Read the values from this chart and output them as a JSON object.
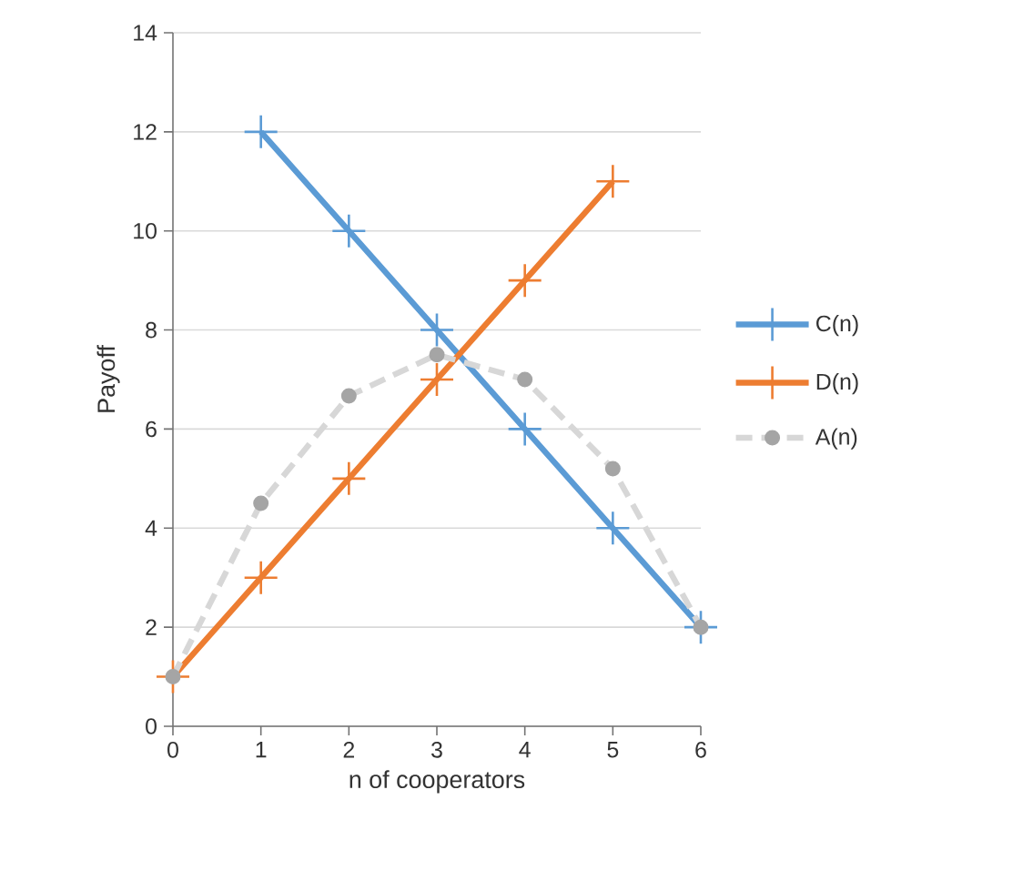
{
  "chart_data": {
    "type": "line",
    "xlabel": "n of cooperators",
    "ylabel": "Payoff",
    "categories": [
      "0",
      "1",
      "2",
      "3",
      "4",
      "5",
      "6"
    ],
    "series": [
      {
        "name": "C(n)",
        "color": "#5b9bd5",
        "values": [
          null,
          12,
          10,
          8,
          6,
          4,
          2
        ],
        "marker": "cross",
        "line_style": "solid"
      },
      {
        "name": "D(n)",
        "color": "#ed7d31",
        "values": [
          1,
          3,
          5,
          7,
          9,
          11,
          null
        ],
        "marker": "cross",
        "line_style": "solid"
      },
      {
        "name": "A(n)",
        "color": "#a5a5a5",
        "values": [
          1,
          4.5,
          6.67,
          7.5,
          7,
          5.2,
          2
        ],
        "marker": "circle",
        "line_style": "dashed"
      }
    ],
    "ylim": [
      0,
      14
    ],
    "yticks": [
      0,
      2,
      4,
      6,
      8,
      10,
      12,
      14
    ],
    "grid": "y",
    "legend": "right"
  }
}
